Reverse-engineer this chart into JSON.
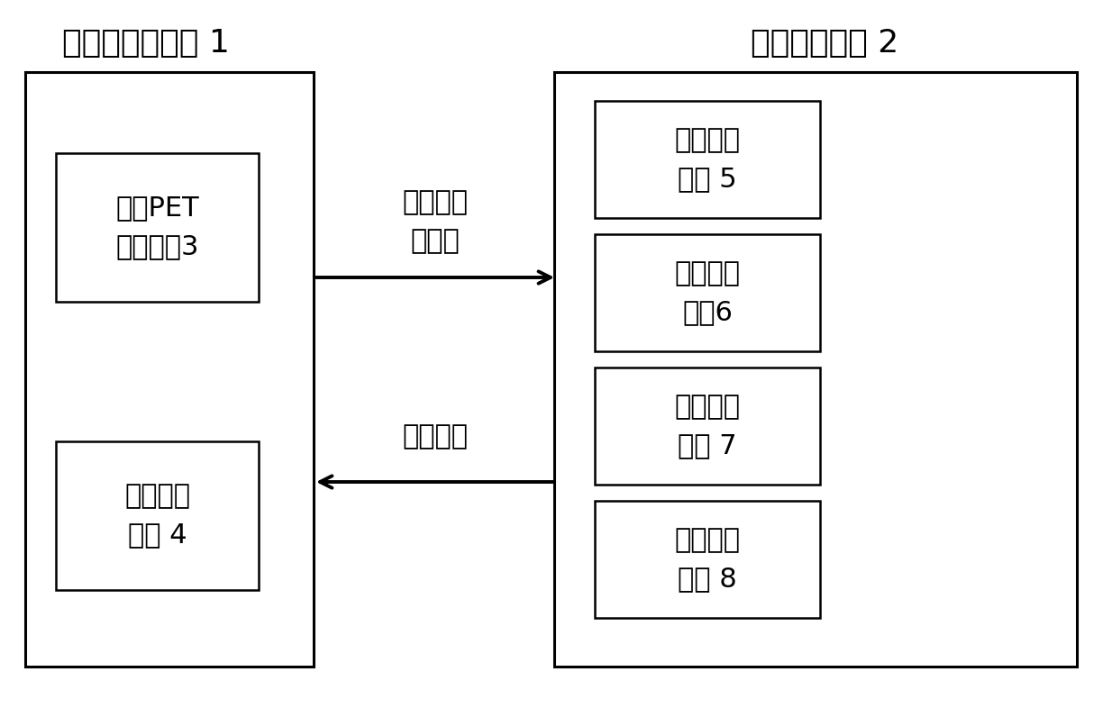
{
  "bg_color": "#ffffff",
  "title_left": "信号采集子系统 1",
  "title_right": "计算机子系统 2",
  "box_left_top_text": "平板PET\n成像装置3",
  "box_left_bottom_text": "光学成像\n装置 4",
  "right_labels": [
    "系统控制\n模块 5",
    "数据处理\n模块6",
    "数据重建\n模块 7",
    "数据配准\n模块 8"
  ],
  "arrow_top_label": "信号和数\n据处理",
  "arrow_bottom_label": "系统控制",
  "font_size_title": 26,
  "font_size_box": 22,
  "font_size_arrow": 22
}
